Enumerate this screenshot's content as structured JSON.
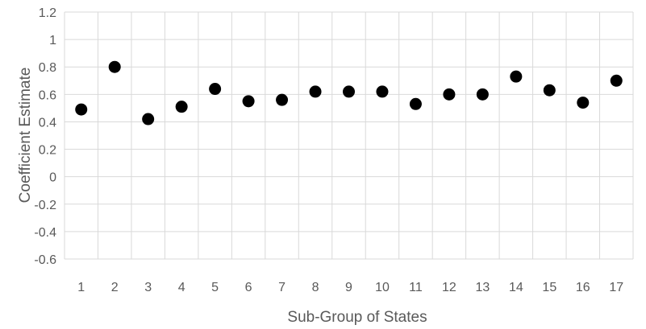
{
  "chart_data": {
    "type": "scatter",
    "title": "",
    "xlabel": "Sub-Group of States",
    "ylabel": "Coefficient Estimate",
    "x_ticks": [
      "1",
      "2",
      "3",
      "4",
      "5",
      "6",
      "7",
      "8",
      "9",
      "10",
      "11",
      "12",
      "13",
      "14",
      "15",
      "16",
      "17"
    ],
    "y_ticks": [
      "1.2",
      "1",
      "0.8",
      "0.6",
      "0.4",
      "0.2",
      "0",
      "-0.2",
      "-0.4",
      "-0.6"
    ],
    "xlim": [
      1,
      17
    ],
    "ylim": [
      -0.6,
      1.2
    ],
    "grid": true,
    "legend": "none",
    "marker_color": "#000000",
    "series": [
      {
        "x": [
          1,
          2,
          3,
          4,
          5,
          6,
          7,
          8,
          9,
          10,
          11,
          12,
          13,
          14,
          15,
          16,
          17
        ],
        "y": [
          0.49,
          0.8,
          0.42,
          0.51,
          0.64,
          0.55,
          0.56,
          0.62,
          0.62,
          0.62,
          0.53,
          0.6,
          0.6,
          0.73,
          0.63,
          0.54,
          0.7
        ]
      }
    ]
  }
}
